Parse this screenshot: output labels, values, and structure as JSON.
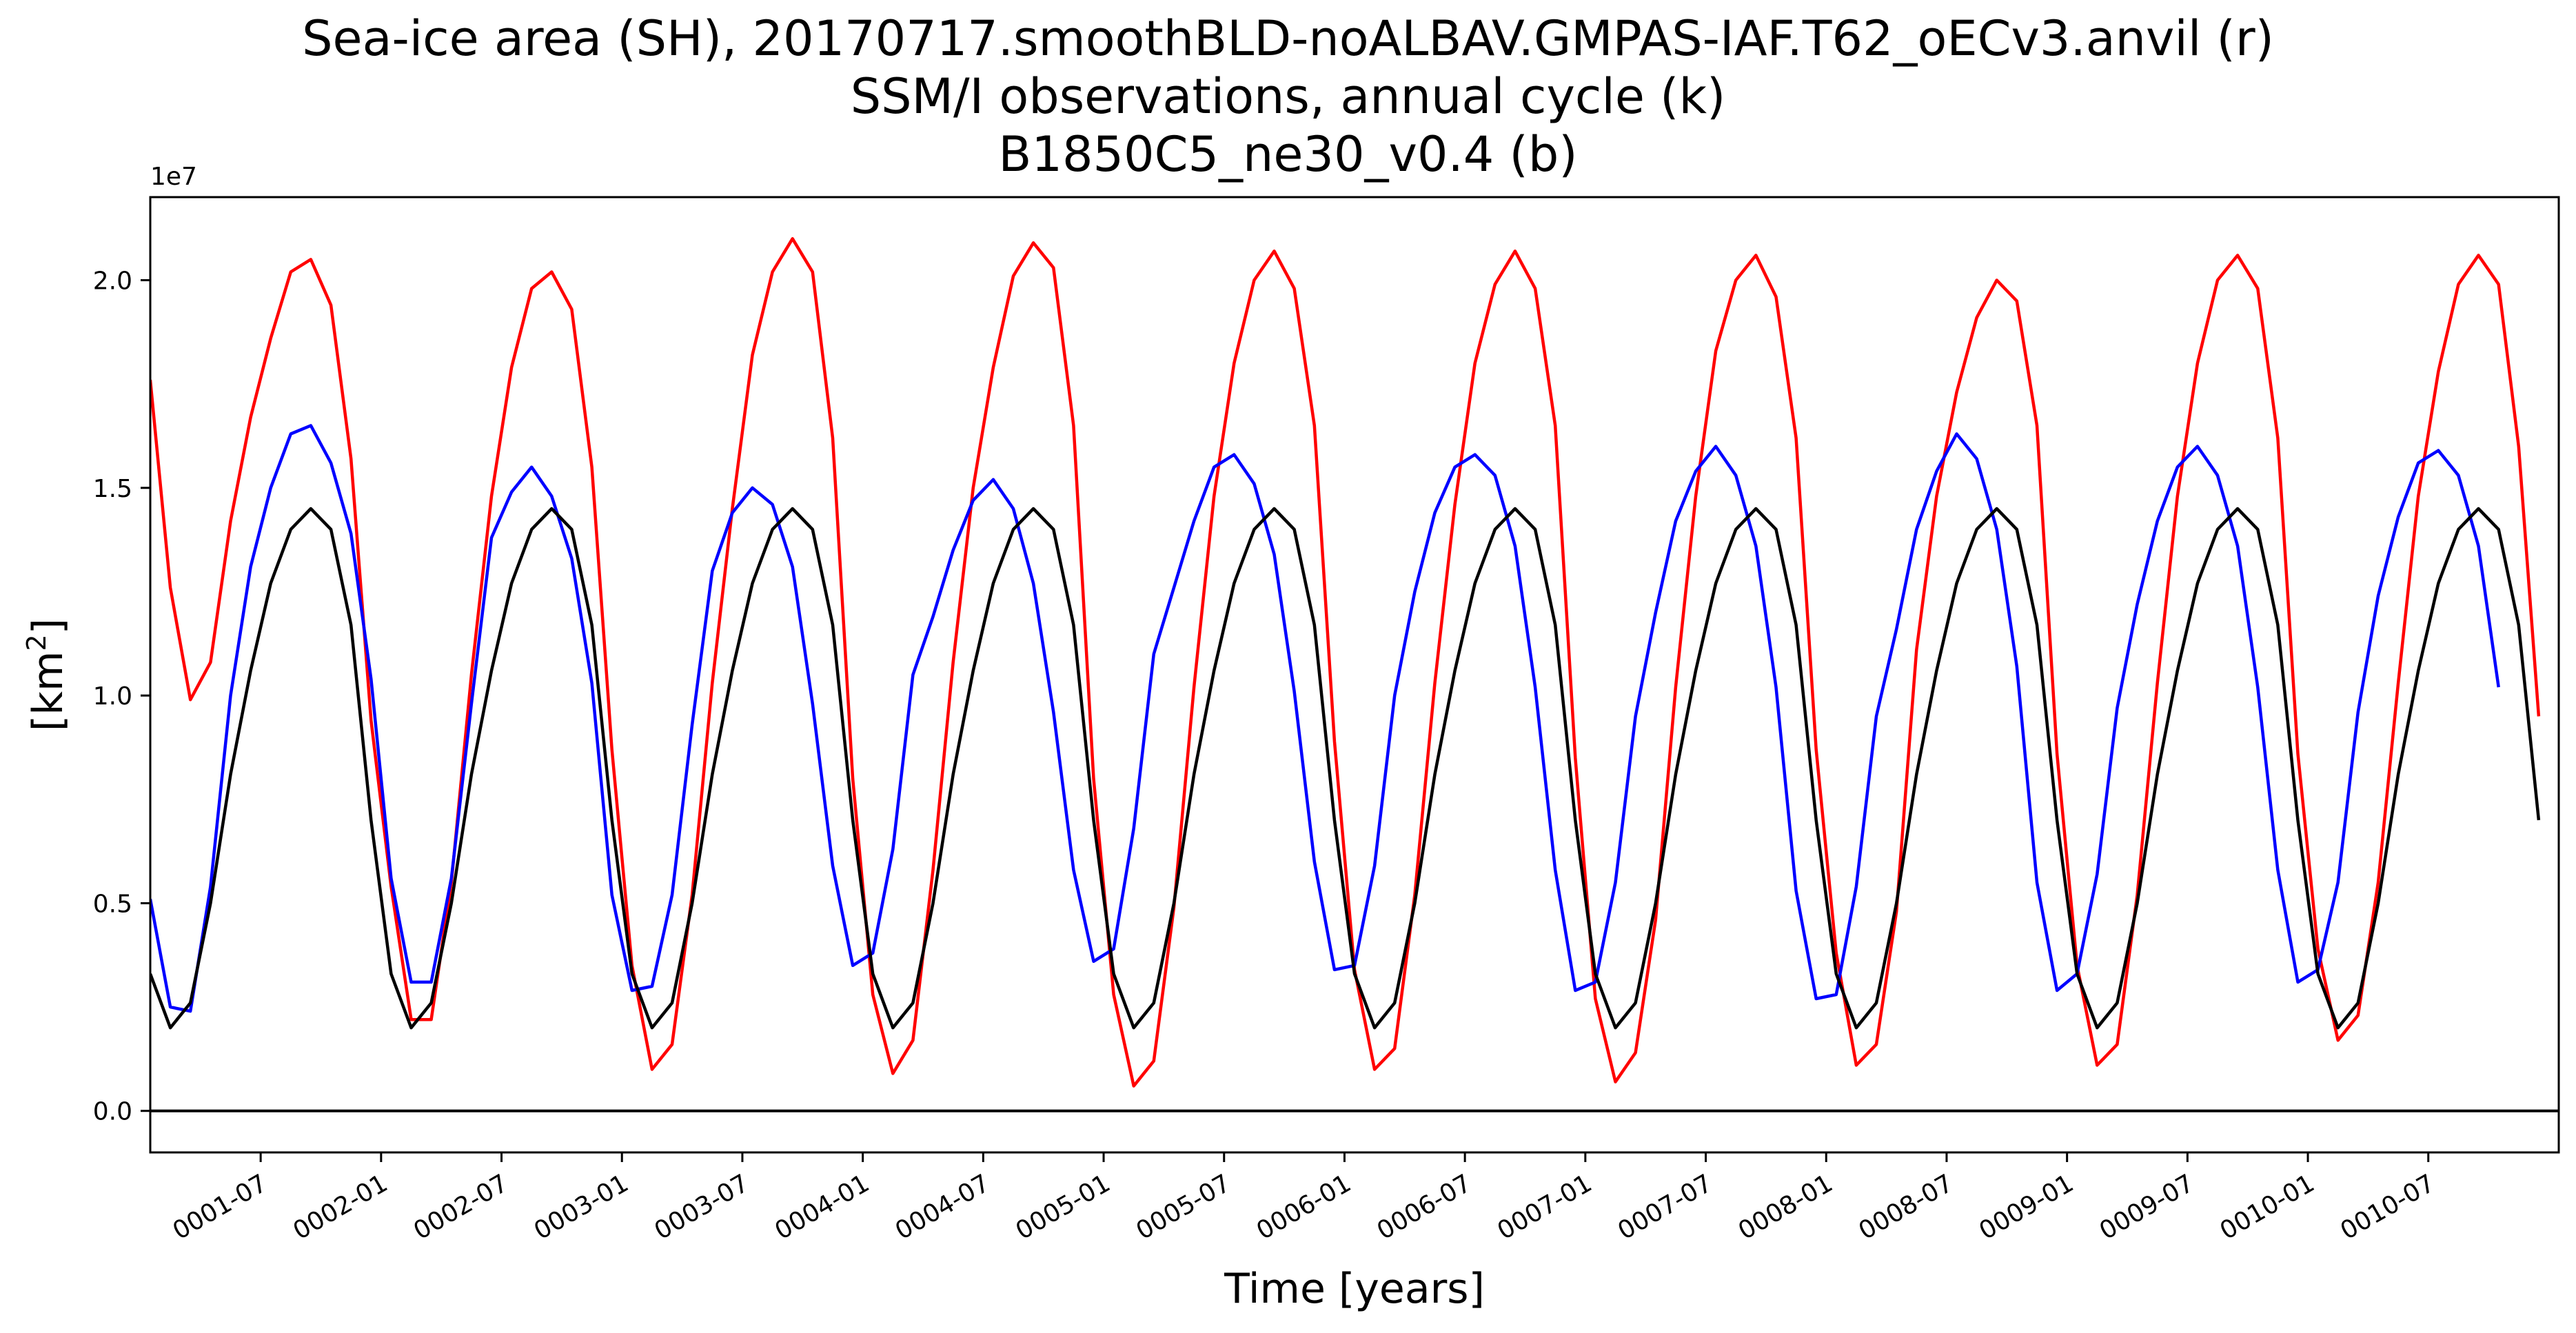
{
  "chart_data": {
    "type": "line",
    "title_lines": [
      "Sea-ice area (SH), 20170717.smoothBLD-noALBAV.GMPAS-IAF.T62_oECv3.anvil (r)",
      "SSM/I observations, annual cycle (k)",
      "B1850C5_ne30_v0.4 (b)"
    ],
    "xlabel": "Time [years]",
    "ylabel": {
      "base": "[km",
      "sup": "2",
      "close": "]"
    },
    "y_offset_label": "1e7",
    "y_multiplier": 10000000,
    "xlim": [
      0,
      120
    ],
    "ylim": [
      -0.1,
      2.2
    ],
    "y_ticks": [
      0.0,
      0.5,
      1.0,
      1.5,
      2.0
    ],
    "y_tick_labels": [
      "0.0",
      "0.5",
      "1.0",
      "1.5",
      "2.0"
    ],
    "x_ticks": [
      5.5,
      11.5,
      17.5,
      23.5,
      29.5,
      35.5,
      41.5,
      47.5,
      53.5,
      59.5,
      65.5,
      71.5,
      77.5,
      83.5,
      89.5,
      95.5,
      101.5,
      107.5,
      113.5
    ],
    "x_tick_labels": [
      "0001-07",
      "0002-01",
      "0002-07",
      "0003-01",
      "0003-07",
      "0004-01",
      "0004-07",
      "0005-01",
      "0005-07",
      "0006-01",
      "0006-07",
      "0007-01",
      "0007-07",
      "0008-01",
      "0008-07",
      "0009-01",
      "0009-07",
      "0010-01",
      "0010-07"
    ],
    "zero_line": 0.0,
    "grid": false,
    "series": [
      {
        "color": "#ff0000",
        "x_start": 0,
        "values": [
          1.76,
          1.26,
          0.99,
          1.08,
          1.42,
          1.67,
          1.86,
          2.02,
          2.05,
          1.94,
          1.57,
          0.94,
          0.54,
          0.22,
          0.22,
          0.55,
          1.05,
          1.48,
          1.79,
          1.98,
          2.02,
          1.93,
          1.55,
          0.87,
          0.35,
          0.1,
          0.16,
          0.52,
          1.03,
          1.45,
          1.82,
          2.02,
          2.1,
          2.02,
          1.62,
          0.8,
          0.28,
          0.09,
          0.17,
          0.58,
          1.08,
          1.5,
          1.79,
          2.01,
          2.09,
          2.03,
          1.65,
          0.8,
          0.28,
          0.06,
          0.12,
          0.49,
          1.02,
          1.48,
          1.8,
          2.0,
          2.07,
          1.98,
          1.65,
          0.89,
          0.34,
          0.1,
          0.15,
          0.52,
          1.03,
          1.46,
          1.8,
          1.99,
          2.07,
          1.98,
          1.65,
          0.85,
          0.27,
          0.07,
          0.14,
          0.46,
          1.02,
          1.48,
          1.83,
          2.0,
          2.06,
          1.96,
          1.62,
          0.87,
          0.38,
          0.11,
          0.16,
          0.48,
          1.11,
          1.48,
          1.73,
          1.91,
          2.0,
          1.95,
          1.65,
          0.86,
          0.35,
          0.11,
          0.16,
          0.52,
          1.03,
          1.48,
          1.8,
          2.0,
          2.06,
          1.98,
          1.62,
          0.86,
          0.39,
          0.17,
          0.23,
          0.55,
          1.03,
          1.48,
          1.78,
          1.99,
          2.06,
          1.99,
          1.6,
          0.95
        ]
      },
      {
        "color": "#0000ff",
        "x_start": 0,
        "values": [
          0.51,
          0.25,
          0.24,
          0.54,
          1.0,
          1.31,
          1.5,
          1.63,
          1.65,
          1.56,
          1.39,
          1.04,
          0.56,
          0.31,
          0.31,
          0.56,
          0.98,
          1.38,
          1.49,
          1.55,
          1.48,
          1.33,
          1.03,
          0.52,
          0.29,
          0.3,
          0.52,
          0.93,
          1.3,
          1.44,
          1.5,
          1.46,
          1.31,
          0.98,
          0.59,
          0.35,
          0.38,
          0.63,
          1.05,
          1.19,
          1.35,
          1.47,
          1.52,
          1.45,
          1.27,
          0.96,
          0.58,
          0.36,
          0.39,
          0.68,
          1.1,
          1.26,
          1.42,
          1.55,
          1.58,
          1.51,
          1.34,
          1.01,
          0.6,
          0.34,
          0.35,
          0.59,
          1.0,
          1.25,
          1.44,
          1.55,
          1.58,
          1.53,
          1.36,
          1.02,
          0.58,
          0.29,
          0.31,
          0.55,
          0.95,
          1.2,
          1.42,
          1.54,
          1.6,
          1.53,
          1.36,
          1.02,
          0.53,
          0.27,
          0.28,
          0.54,
          0.95,
          1.16,
          1.4,
          1.54,
          1.63,
          1.57,
          1.4,
          1.07,
          0.55,
          0.29,
          0.33,
          0.57,
          0.97,
          1.22,
          1.42,
          1.55,
          1.6,
          1.53,
          1.36,
          1.02,
          0.58,
          0.31,
          0.34,
          0.55,
          0.96,
          1.24,
          1.43,
          1.56,
          1.59,
          1.53,
          1.36,
          1.02
        ]
      },
      {
        "color": "#000000",
        "x_start": 0,
        "values": [
          0.33,
          0.2,
          0.26,
          0.5,
          0.81,
          1.06,
          1.27,
          1.4,
          1.45,
          1.4,
          1.17,
          0.7,
          0.33,
          0.2,
          0.26,
          0.5,
          0.81,
          1.06,
          1.27,
          1.4,
          1.45,
          1.4,
          1.17,
          0.7,
          0.33,
          0.2,
          0.26,
          0.5,
          0.81,
          1.06,
          1.27,
          1.4,
          1.45,
          1.4,
          1.17,
          0.7,
          0.33,
          0.2,
          0.26,
          0.5,
          0.81,
          1.06,
          1.27,
          1.4,
          1.45,
          1.4,
          1.17,
          0.7,
          0.33,
          0.2,
          0.26,
          0.5,
          0.81,
          1.06,
          1.27,
          1.4,
          1.45,
          1.4,
          1.17,
          0.7,
          0.33,
          0.2,
          0.26,
          0.5,
          0.81,
          1.06,
          1.27,
          1.4,
          1.45,
          1.4,
          1.17,
          0.7,
          0.33,
          0.2,
          0.26,
          0.5,
          0.81,
          1.06,
          1.27,
          1.4,
          1.45,
          1.4,
          1.17,
          0.7,
          0.33,
          0.2,
          0.26,
          0.5,
          0.81,
          1.06,
          1.27,
          1.4,
          1.45,
          1.4,
          1.17,
          0.7,
          0.33,
          0.2,
          0.26,
          0.5,
          0.81,
          1.06,
          1.27,
          1.4,
          1.45,
          1.4,
          1.17,
          0.7,
          0.33,
          0.2,
          0.26,
          0.5,
          0.81,
          1.06,
          1.27,
          1.4,
          1.45,
          1.4,
          1.17,
          0.7
        ]
      }
    ]
  }
}
